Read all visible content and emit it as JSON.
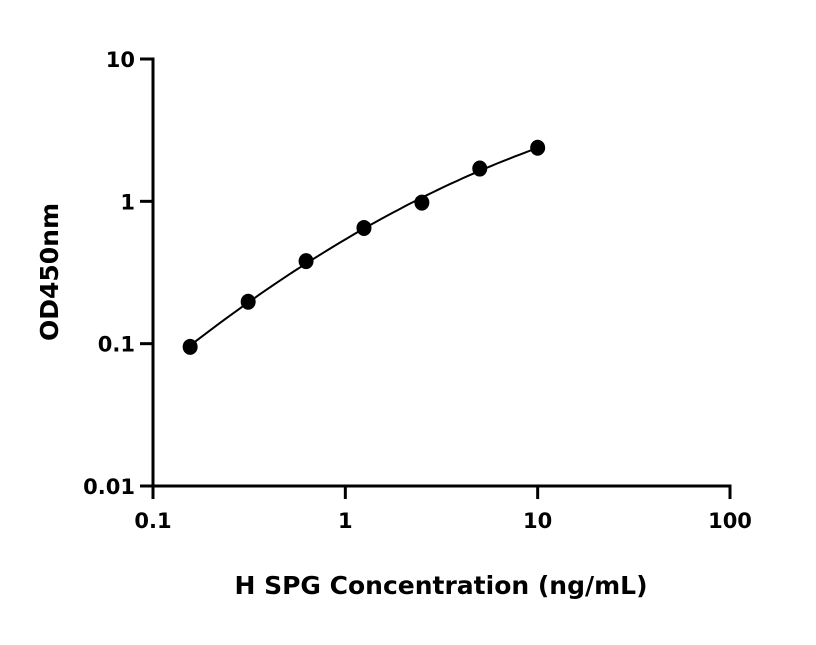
{
  "chart_data": {
    "type": "scatter",
    "title": "",
    "xlabel": "H SPG Concentration (ng/mL)",
    "ylabel": "OD450nm",
    "xscale": "log",
    "yscale": "log",
    "xlim": [
      0.1,
      100
    ],
    "ylim": [
      0.01,
      10
    ],
    "xticks": [
      "0.1",
      "1",
      "10",
      "100"
    ],
    "yticks": [
      "0.01",
      "0.1",
      "1",
      "10"
    ],
    "grid": false,
    "legend": "none",
    "fit_curve": true,
    "series": [
      {
        "x": [
          0.156,
          0.3125,
          0.625,
          1.25,
          2.5,
          5,
          10
        ],
        "y": [
          0.095,
          0.197,
          0.38,
          0.65,
          0.98,
          1.7,
          2.38
        ],
        "color": "#000000"
      }
    ]
  }
}
